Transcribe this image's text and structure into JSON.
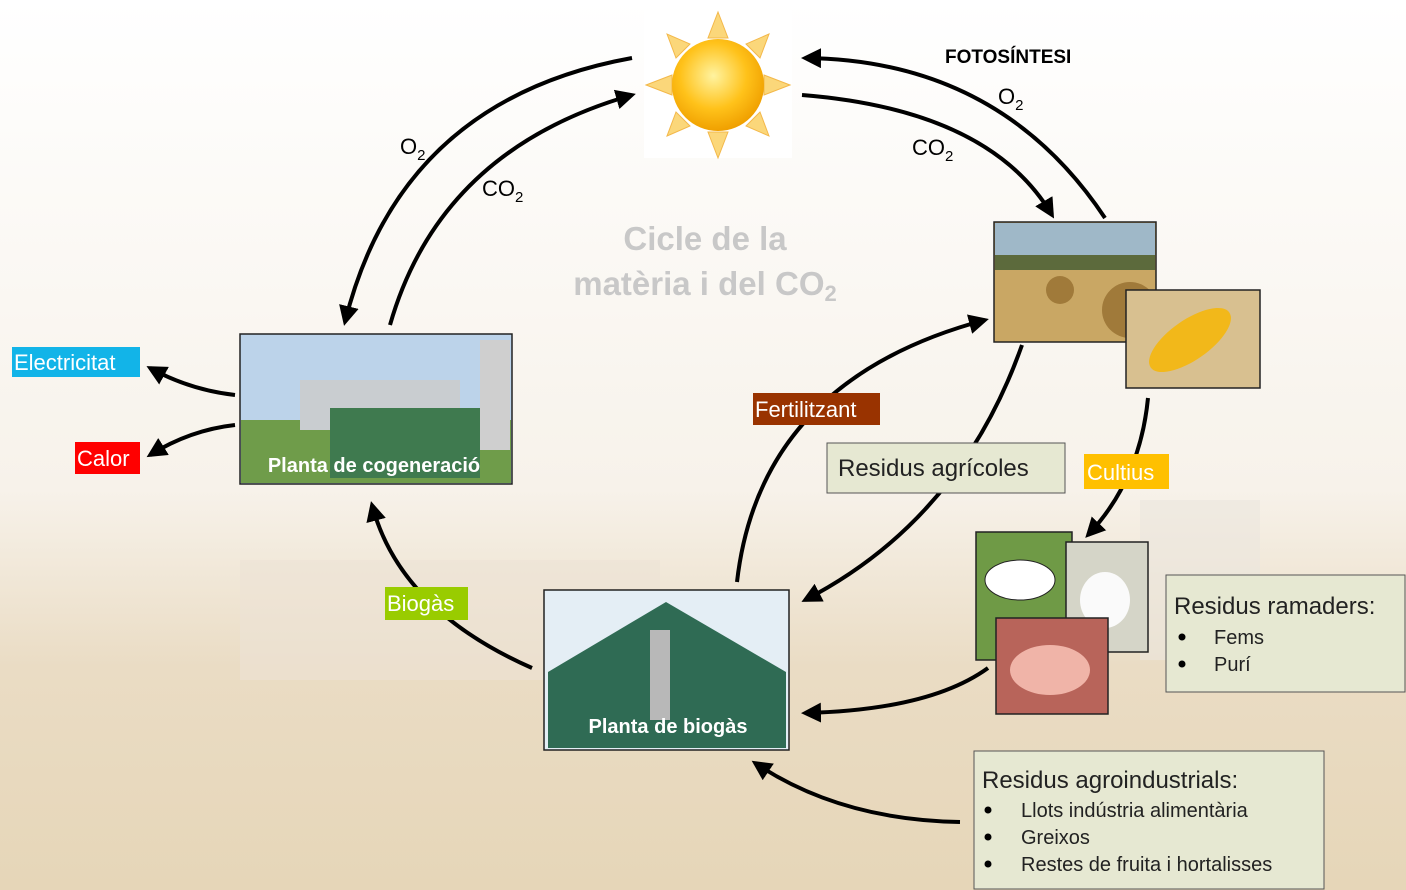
{
  "title": {
    "line1": "Cicle de la",
    "line2": "matèria i del CO",
    "line2_sub": "2"
  },
  "photosynthesis": "FOTOSÍNTESI",
  "gases": [
    {
      "main": "O",
      "sub": "2"
    },
    {
      "main": "CO",
      "sub": "2"
    },
    {
      "main": "O",
      "sub": "2"
    },
    {
      "main": "CO",
      "sub": "2"
    }
  ],
  "nodes": {
    "cogeneration": "Planta de cogeneració",
    "biogas_plant": "Planta de biogàs",
    "electricity": "Electricitat",
    "heat": "Calor",
    "fertilizer": "Fertilitzant",
    "agricultural_waste": "Residus agrícoles",
    "crops": "Cultius",
    "biogas": "Biogàs"
  },
  "livestock_waste": {
    "title": "Residus ramaders:",
    "items": [
      "Fems",
      "Purí"
    ]
  },
  "agroindustrial_waste": {
    "title": "Residus agroindustrials:",
    "items": [
      "Llots indústria alimentària",
      "Greixos",
      "Restes de fruita i hortalisses"
    ]
  }
}
